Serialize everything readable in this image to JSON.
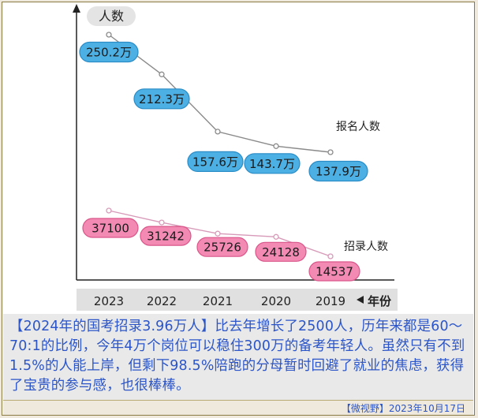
{
  "chart_data": {
    "type": "line",
    "ylabel": "人数",
    "xlabel": "年份",
    "categories": [
      "2023",
      "2022",
      "2021",
      "2020",
      "2019"
    ],
    "series": [
      {
        "name": "报名人数",
        "values": [
          250.2,
          212.3,
          157.6,
          143.7,
          137.9
        ],
        "labels": [
          "250.2万",
          "212.3万",
          "157.6万",
          "143.7万",
          "137.9万"
        ],
        "color": "#3aa6dd"
      },
      {
        "name": "招录人数",
        "values": [
          37100,
          31242,
          25726,
          24128,
          14537
        ],
        "labels": [
          "37100",
          "31242",
          "25726",
          "24128",
          "14537"
        ],
        "color": "#ec6ea0"
      }
    ],
    "grid": false,
    "legend": "inline-right"
  },
  "caption": {
    "text": "【2024年的国考招录3.96万人】比去年增长了2500人，历年来都是60～70:1的比例，今年4万个岗位可以稳住300万的备考年轻人。虽然只有不到1.5%的人能上岸，但剩下98.5%陪跑的分母暂时回避了就业的焦虑，获得了宝贵的参与感，也很棒棒。"
  },
  "footer": {
    "text": "【微视野】2023年10月17日"
  }
}
